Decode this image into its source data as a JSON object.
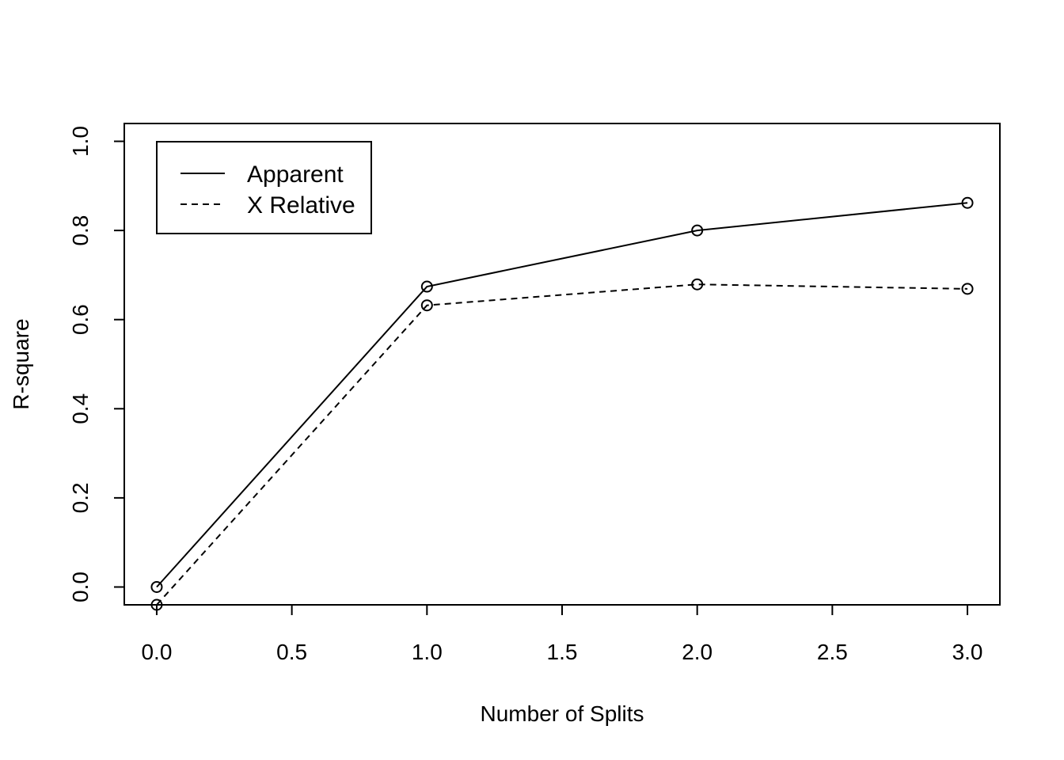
{
  "chart_data": {
    "type": "line",
    "title": "",
    "xlabel": "Number of Splits",
    "ylabel": "R-square",
    "xlim": [
      -0.12,
      3.12
    ],
    "ylim": [
      -0.04,
      1.04
    ],
    "x_ticks": [
      0.0,
      0.5,
      1.0,
      1.5,
      2.0,
      2.5,
      3.0
    ],
    "x_tick_labels": [
      "0.0",
      "0.5",
      "1.0",
      "1.5",
      "2.0",
      "2.5",
      "3.0"
    ],
    "y_ticks": [
      0.0,
      0.2,
      0.4,
      0.6,
      0.8,
      1.0
    ],
    "y_tick_labels": [
      "0.0",
      "0.2",
      "0.4",
      "0.6",
      "0.8",
      "1.0"
    ],
    "grid": false,
    "legend_position": "top-left",
    "series": [
      {
        "name": "Apparent",
        "line_style": "solid",
        "marker": "open-circle",
        "color": "#000000",
        "x": [
          0,
          1,
          2,
          3
        ],
        "y": [
          0.0,
          0.674,
          0.8,
          0.862
        ]
      },
      {
        "name": "X Relative",
        "line_style": "dashed",
        "marker": "open-circle",
        "color": "#000000",
        "x": [
          0,
          1,
          2,
          3
        ],
        "y": [
          -0.04,
          0.632,
          0.679,
          0.669
        ]
      }
    ]
  }
}
